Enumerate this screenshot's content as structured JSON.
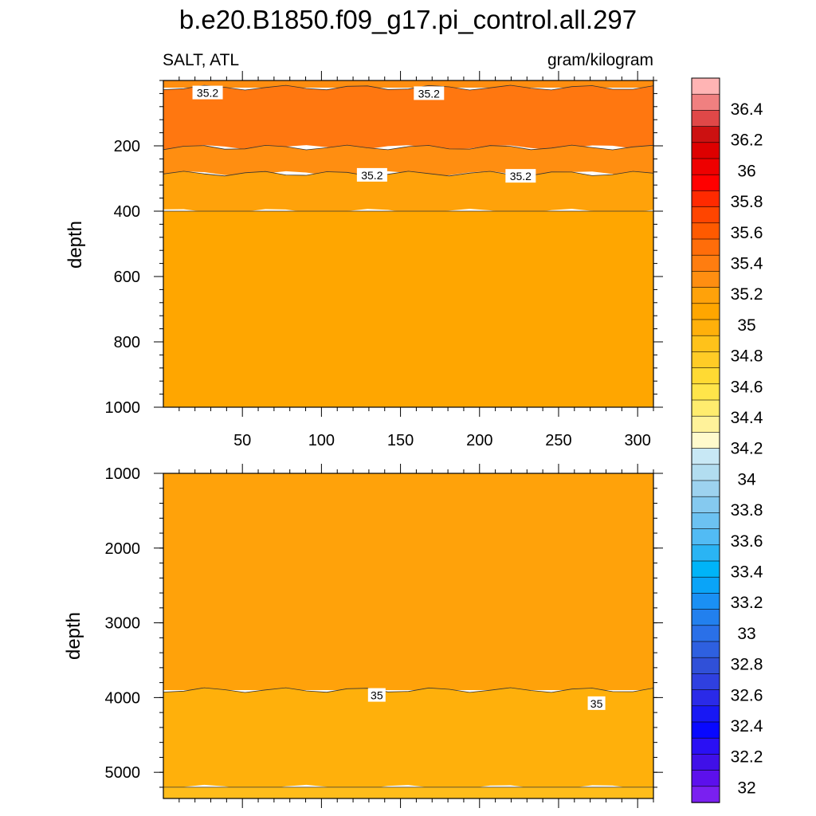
{
  "chart_data": {
    "type": "contour",
    "title": "b.e20.B1850.f09_g17.pi_control.all.297",
    "variable_label": "SALT, ATL",
    "units_label": "gram/kilogram",
    "x_tick_labels": [
      "50",
      "100",
      "150",
      "200",
      "250",
      "300"
    ],
    "panels": [
      {
        "name": "upper",
        "ylabel": "depth",
        "ylim": [
          0,
          1000
        ],
        "y_ticks": [
          200,
          400,
          600,
          800,
          1000
        ],
        "xlim": [
          0,
          310
        ],
        "bands": [
          {
            "from_depth": 0,
            "to_depth": 22,
            "level": 35.2,
            "color": "#ff8e11"
          },
          {
            "from_depth": 22,
            "to_depth": 205,
            "level": 35.3,
            "color": "#ff7710"
          },
          {
            "from_depth": 205,
            "to_depth": 285,
            "level": 35.1,
            "color": "#ff8e11"
          },
          {
            "from_depth": 285,
            "to_depth": 400,
            "level": 35.05,
            "color": "#ffa20a"
          },
          {
            "from_depth": 400,
            "to_depth": 1000,
            "level": 35.0,
            "color": "#ffa600"
          }
        ],
        "contour_labels": [
          {
            "text": "35.2",
            "x": 28,
            "depth": 38
          },
          {
            "text": "35.2",
            "x": 168,
            "depth": 40
          },
          {
            "text": "35.2",
            "x": 132,
            "depth": 290
          },
          {
            "text": "35.2",
            "x": 226,
            "depth": 293
          }
        ]
      },
      {
        "name": "lower",
        "ylabel": "depth",
        "ylim": [
          1000,
          5350
        ],
        "y_ticks": [
          1000,
          2000,
          3000,
          4000,
          5000
        ],
        "xlim": [
          0,
          310
        ],
        "bands": [
          {
            "from_depth": 1000,
            "to_depth": 3900,
            "level": 35.05,
            "color": "#ffa20a"
          },
          {
            "from_depth": 3900,
            "to_depth": 5200,
            "level": 34.95,
            "color": "#ffb00b"
          },
          {
            "from_depth": 5200,
            "to_depth": 5350,
            "level": 34.9,
            "color": "#ffbd1a"
          }
        ],
        "contour_labels": [
          {
            "text": "35",
            "x": 135,
            "depth": 3970
          },
          {
            "text": "35",
            "x": 274,
            "depth": 4080
          }
        ]
      }
    ]
  },
  "colorbar": {
    "labels": [
      "36.4",
      "36.2",
      "36",
      "35.8",
      "35.6",
      "35.4",
      "35.2",
      "35",
      "34.8",
      "34.6",
      "34.4",
      "34.2",
      "34",
      "33.8",
      "33.6",
      "33.4",
      "33.2",
      "33",
      "32.8",
      "32.6",
      "32.4",
      "32.2",
      "32"
    ],
    "colors": [
      "#ffb4b4",
      "#f08080",
      "#e04848",
      "#cc1111",
      "#dd0000",
      "#ee0000",
      "#ff0000",
      "#ff2a00",
      "#ff4500",
      "#ff5a00",
      "#ff6d0a",
      "#ff7d10",
      "#ff8e11",
      "#ffa20a",
      "#ffa600",
      "#ffb00b",
      "#ffc21a",
      "#ffcc26",
      "#ffda33",
      "#ffe54a",
      "#ffec6e",
      "#fff29a",
      "#fffacc",
      "#c8e8f5",
      "#b2ddf0",
      "#9dd2ef",
      "#85c9ef",
      "#6cc2f2",
      "#52bbf4",
      "#2ab4f4",
      "#00b4f8",
      "#0aa4f8",
      "#1a90f4",
      "#2280ee",
      "#2a70e8",
      "#2e60e0",
      "#3050d8",
      "#2f40e0",
      "#2a2ae8",
      "#1818f4",
      "#0808ff",
      "#2a10f4",
      "#4010e8",
      "#5c10ec",
      "#7a20f0"
    ]
  }
}
